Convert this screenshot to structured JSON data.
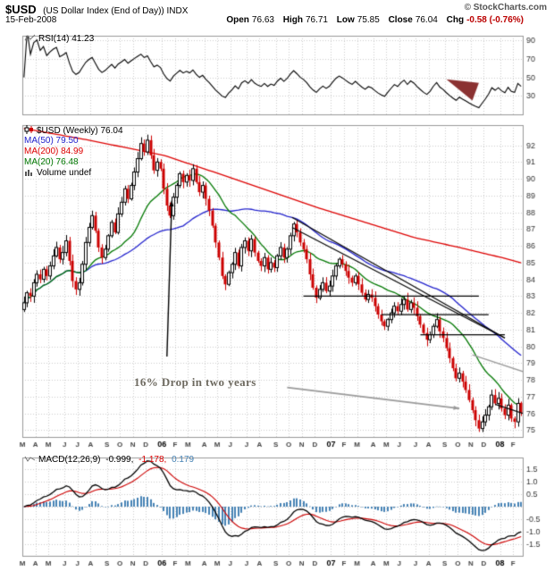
{
  "header": {
    "symbol": "$USD",
    "title": "(US Dollar Index (End of Day)) INDX",
    "copyright": "© StockCharts.com",
    "date": "15-Feb-2008",
    "open_label": "Open",
    "open_value": "76.63",
    "high_label": "High",
    "high_value": "76.71",
    "low_label": "Low",
    "low_value": "75.85",
    "close_label": "Close",
    "close_value": "76.04",
    "chg_label": "Chg",
    "chg_value": "-0.58 (-0.76%)"
  },
  "rsi_panel": {
    "legend": "RSI(14) 41.23"
  },
  "main_panel": {
    "legend_symbol": "$USD (Weekly) 76.04",
    "legend_ma50": "MA(50) 79.50",
    "legend_ma200": "MA(200) 84.99",
    "legend_ma20": "MA(20) 76.48",
    "legend_volume": "Volume undef",
    "annotation_text": "16% Drop in two years"
  },
  "macd_legend": {
    "label": "MACD(12,26,9)",
    "value_macd": "-0.999,",
    "value_signal": "-1.178,",
    "value_hist": "0.179"
  },
  "chart_data": {
    "type": "candlestick",
    "title": "$USD US Dollar Index (End of Day) — Weekly with RSI(14) and MACD(12,26,9)",
    "x_axis": {
      "month_labels": [
        "M",
        "A",
        "M",
        "J",
        "J",
        "A",
        "S",
        "O",
        "N",
        "D",
        "06",
        "F",
        "M",
        "A",
        "M",
        "J",
        "J",
        "A",
        "S",
        "O",
        "N",
        "D",
        "07",
        "F",
        "M",
        "A",
        "M",
        "J",
        "J",
        "A",
        "S",
        "O",
        "N",
        "D",
        "08",
        "F"
      ],
      "month_week_counts": [
        4,
        4,
        5,
        4,
        4,
        5,
        4,
        4,
        4,
        5,
        4,
        4,
        5,
        4,
        4,
        5,
        4,
        5,
        4,
        4,
        4,
        5,
        4,
        4,
        5,
        4,
        4,
        5,
        4,
        5,
        4,
        4,
        4,
        5,
        4,
        3
      ]
    },
    "price_axis": {
      "min": 74.6,
      "max": 93.2,
      "ticks": [
        92,
        91,
        90,
        89,
        88,
        87,
        86,
        85,
        84,
        83,
        82,
        81,
        80,
        79,
        78,
        77,
        76,
        75
      ]
    },
    "weekly_close": [
      82.6,
      83.2,
      83.0,
      83.8,
      84.3,
      84.0,
      84.6,
      84.2,
      84.8,
      85.4,
      85.9,
      85.2,
      85.6,
      86.3,
      85.1,
      83.9,
      83.4,
      83.8,
      84.9,
      86.2,
      87.1,
      87.8,
      86.9,
      85.9,
      85.3,
      85.8,
      86.6,
      87.4,
      86.8,
      87.9,
      88.6,
      89.4,
      88.8,
      89.6,
      90.4,
      91.2,
      92.1,
      91.6,
      92.3,
      91.4,
      90.5,
      91.0,
      90.6,
      89.4,
      88.4,
      87.8,
      88.9,
      89.6,
      90.3,
      89.8,
      90.2,
      89.9,
      90.6,
      89.8,
      89.2,
      89.6,
      88.8,
      88.1,
      87.2,
      86.2,
      85.3,
      84.2,
      83.7,
      84.4,
      84.9,
      85.6,
      84.8,
      85.9,
      86.3,
      85.7,
      86.4,
      85.6,
      85.1,
      84.8,
      85.3,
      84.6,
      85.0,
      84.7,
      85.4,
      85.9,
      85.3,
      85.8,
      86.6,
      87.3,
      86.8,
      86.2,
      85.8,
      85.2,
      84.3,
      83.5,
      82.9,
      83.4,
      83.8,
      83.3,
      83.6,
      84.2,
      84.8,
      85.2,
      84.9,
      84.5,
      84.1,
      83.8,
      84.2,
      83.7,
      83.2,
      82.8,
      83.1,
      82.9,
      82.4,
      81.9,
      81.5,
      81.2,
      81.6,
      82.0,
      82.4,
      82.1,
      82.5,
      82.8,
      82.2,
      82.6,
      82.3,
      81.8,
      81.3,
      80.8,
      80.4,
      80.7,
      81.2,
      81.6,
      80.9,
      80.5,
      79.9,
      79.3,
      78.7,
      78.1,
      78.4,
      77.9,
      77.4,
      76.8,
      76.2,
      75.6,
      75.1,
      75.5,
      75.9,
      76.4,
      77.1,
      76.6,
      76.9,
      76.3,
      75.9,
      76.5,
      75.7,
      75.5,
      76.6,
      76.04
    ],
    "last_candle": {
      "open": 76.63,
      "high": 76.71,
      "low": 75.85,
      "close": 76.04
    },
    "moving_averages": {
      "ma20_period": 20,
      "ma20_last": 76.48,
      "ma50_period": 50,
      "ma50_last": 79.5,
      "ma200_period": 200,
      "ma200_last": 84.99,
      "ma200_points": [
        [
          0,
          93.0
        ],
        [
          20,
          92.3
        ],
        [
          43,
          91.4
        ],
        [
          60,
          90.3
        ],
        [
          75,
          89.3
        ],
        [
          90,
          88.3
        ],
        [
          105,
          87.4
        ],
        [
          120,
          86.5
        ],
        [
          134,
          85.9
        ],
        [
          147,
          85.3
        ],
        [
          153,
          84.99
        ]
      ]
    },
    "rsi_panel": {
      "period": 14,
      "last": 41.23,
      "range": [
        10,
        95
      ],
      "ticks": [
        90,
        70,
        50,
        30
      ]
    },
    "macd_panel": {
      "fast": 12,
      "slow": 26,
      "signal": 9,
      "last_macd": -0.999,
      "last_signal": -1.178,
      "last_hist": 0.179,
      "range": [
        -1.95,
        1.95
      ],
      "ticks": [
        1.5,
        1.0,
        0.5,
        -0.5,
        -1.0,
        -1.5
      ]
    },
    "annotations": {
      "up_arrow": {
        "from": [
          44,
          79.4
        ],
        "to": [
          45.5,
          88.7
        ]
      },
      "gray_arrow": {
        "from": [
          81,
          77.55
        ],
        "to": [
          134,
          76.3
        ]
      },
      "black_trendlines": [
        [
          [
            82.5,
            87.7
          ],
          [
            148,
            80.5
          ]
        ],
        [
          [
            82.5,
            87.1
          ],
          [
            148,
            80.5
          ]
        ]
      ],
      "support_lines": [
        [
          [
            86,
            83.0
          ],
          [
            140,
            83.0
          ]
        ],
        [
          [
            110,
            81.9
          ],
          [
            143,
            81.9
          ]
        ],
        [
          [
            122,
            80.7
          ],
          [
            148,
            80.7
          ]
        ]
      ],
      "gray_lines": [
        [
          [
            138,
            79.5
          ],
          [
            163,
            77.9
          ]
        ]
      ],
      "black_lines": [
        [
          [
            145,
            76.55
          ],
          [
            162,
            75.45
          ]
        ]
      ],
      "rsi_triangle": [
        [
          130,
          48
        ],
        [
          140,
          44
        ],
        [
          138,
          25
        ]
      ]
    },
    "colors": {
      "up": "#000000",
      "down": "#cc0000",
      "ma20": "#007700",
      "ma50": "#2222cc",
      "ma200": "#dd0000",
      "rsi_line": "#000000",
      "rsi_triangle": "#8b3232",
      "macd_line": "#000000",
      "macd_signal": "#cc0000",
      "macd_hist": "#4682b4",
      "grid": "#cccccc",
      "border": "#999999",
      "axis_text": "#333333",
      "annotation_gray": "#9a9a9a",
      "annotation_text": "#6e6a60",
      "chg_down": "#bb0000"
    }
  }
}
